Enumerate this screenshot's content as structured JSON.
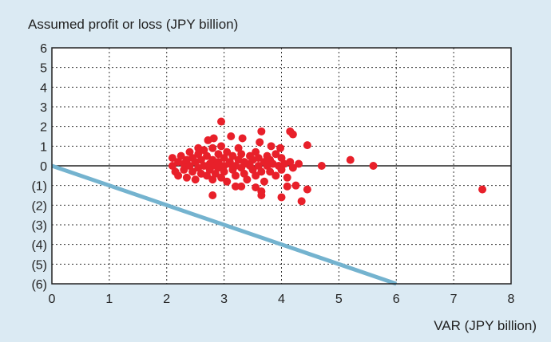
{
  "chart_data": {
    "type": "scatter",
    "title": "",
    "ylabel": "Assumed profit or loss (JPY billion)",
    "xlabel": "VAR (JPY billion)",
    "xlim": [
      0,
      8
    ],
    "ylim": [
      -6,
      6
    ],
    "grid": true,
    "x_ticks": [
      0,
      1,
      2,
      3,
      4,
      5,
      6,
      7,
      8
    ],
    "x_tick_labels": [
      "0",
      "1",
      "2",
      "3",
      "4",
      "5",
      "6",
      "7",
      "8"
    ],
    "y_ticks": [
      6,
      5,
      4,
      3,
      2,
      1,
      0,
      -1,
      -2,
      -3,
      -4,
      -5,
      -6
    ],
    "y_tick_labels": [
      "6",
      "5",
      "4",
      "3",
      "2",
      "1",
      "0",
      "(1)",
      "(2)",
      "(3)",
      "(4)",
      "(5)",
      "(6)"
    ],
    "colors": {
      "points": "#e8202a",
      "line": "#74b3cf",
      "background": "#dbeaf3",
      "plot": "#ffffff"
    },
    "reference_line": {
      "from": [
        0,
        0
      ],
      "to": [
        6,
        -6
      ]
    },
    "points": [
      [
        2.1,
        0.4
      ],
      [
        2.1,
        0.0
      ],
      [
        2.15,
        -0.3
      ],
      [
        2.2,
        0.2
      ],
      [
        2.2,
        -0.5
      ],
      [
        2.25,
        0.5
      ],
      [
        2.3,
        0.1
      ],
      [
        2.3,
        -0.2
      ],
      [
        2.35,
        0.3
      ],
      [
        2.35,
        -0.6
      ],
      [
        2.4,
        0.7
      ],
      [
        2.4,
        0.0
      ],
      [
        2.45,
        -0.3
      ],
      [
        2.45,
        0.4
      ],
      [
        2.5,
        0.2
      ],
      [
        2.5,
        -0.7
      ],
      [
        2.55,
        0.6
      ],
      [
        2.55,
        -0.1
      ],
      [
        2.6,
        0.3
      ],
      [
        2.6,
        -0.4
      ],
      [
        2.65,
        0.8
      ],
      [
        2.65,
        0.0
      ],
      [
        2.7,
        -0.5
      ],
      [
        2.7,
        0.5
      ],
      [
        2.72,
        1.3
      ],
      [
        2.75,
        0.1
      ],
      [
        2.75,
        -0.2
      ],
      [
        2.8,
        0.9
      ],
      [
        2.8,
        0.3
      ],
      [
        2.8,
        -0.7
      ],
      [
        2.82,
        1.4
      ],
      [
        2.85,
        0.0
      ],
      [
        2.85,
        -0.4
      ],
      [
        2.9,
        0.6
      ],
      [
        2.9,
        0.2
      ],
      [
        2.9,
        -0.1
      ],
      [
        2.95,
        1.0
      ],
      [
        2.95,
        -0.6
      ],
      [
        3.0,
        0.4
      ],
      [
        3.0,
        0.0
      ],
      [
        3.0,
        -0.3
      ],
      [
        3.05,
        0.7
      ],
      [
        3.05,
        -0.8
      ],
      [
        3.1,
        0.2
      ],
      [
        3.1,
        0.1
      ],
      [
        3.12,
        1.5
      ],
      [
        3.15,
        -0.2
      ],
      [
        3.15,
        0.5
      ],
      [
        3.2,
        0.0
      ],
      [
        3.2,
        -0.5
      ],
      [
        3.25,
        0.3
      ],
      [
        3.25,
        0.9
      ],
      [
        3.3,
        -0.1
      ],
      [
        3.3,
        0.6
      ],
      [
        3.32,
        1.4
      ],
      [
        3.35,
        0.2
      ],
      [
        3.35,
        -0.4
      ],
      [
        3.4,
        0.1
      ],
      [
        3.4,
        -0.7
      ],
      [
        3.45,
        0.5
      ],
      [
        3.45,
        0.0
      ],
      [
        3.5,
        -0.2
      ],
      [
        3.5,
        0.3
      ],
      [
        3.55,
        0.7
      ],
      [
        3.55,
        -0.5
      ],
      [
        3.6,
        0.0
      ],
      [
        3.6,
        0.4
      ],
      [
        3.62,
        1.2
      ],
      [
        3.65,
        -0.3
      ],
      [
        3.7,
        0.2
      ],
      [
        3.7,
        -0.8
      ],
      [
        3.75,
        0.5
      ],
      [
        3.75,
        0.0
      ],
      [
        3.8,
        -0.3
      ],
      [
        3.8,
        0.3
      ],
      [
        3.82,
        1.0
      ],
      [
        3.85,
        0.1
      ],
      [
        3.9,
        -0.5
      ],
      [
        3.9,
        0.6
      ],
      [
        3.95,
        0.0
      ],
      [
        4.0,
        -0.2
      ],
      [
        4.0,
        0.4
      ],
      [
        4.05,
        0.1
      ],
      [
        4.1,
        -0.6
      ],
      [
        4.15,
        0.2
      ],
      [
        4.2,
        -0.1
      ],
      [
        4.25,
        -1.0
      ],
      [
        4.3,
        0.1
      ],
      [
        3.98,
        0.9
      ],
      [
        2.55,
        0.9
      ],
      [
        4.7,
        0.0
      ],
      [
        5.2,
        0.3
      ],
      [
        5.6,
        0.0
      ],
      [
        7.5,
        -1.2
      ],
      [
        2.95,
        2.25
      ],
      [
        4.15,
        1.75
      ],
      [
        4.2,
        1.6
      ],
      [
        4.45,
        1.05
      ],
      [
        3.65,
        1.75
      ],
      [
        4.35,
        -1.8
      ],
      [
        4.45,
        -1.2
      ],
      [
        2.8,
        -1.5
      ],
      [
        4.0,
        -1.6
      ],
      [
        3.65,
        -1.5
      ],
      [
        3.65,
        -1.3
      ],
      [
        3.3,
        -1.05
      ],
      [
        3.55,
        -1.1
      ],
      [
        3.2,
        -1.05
      ],
      [
        4.1,
        -1.05
      ]
    ]
  }
}
